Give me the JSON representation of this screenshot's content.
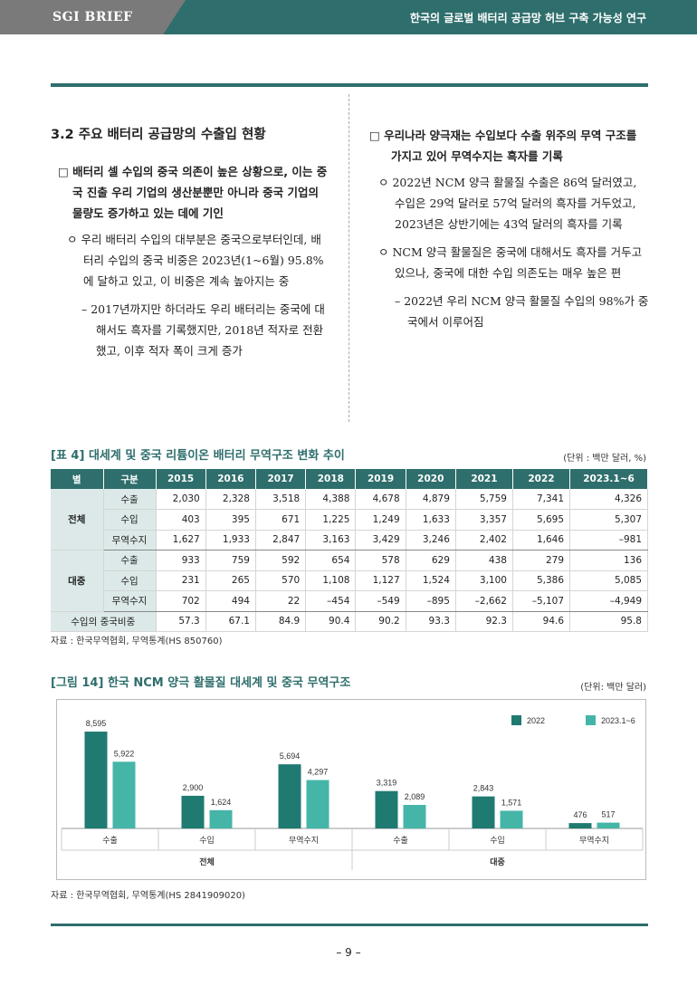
{
  "header": {
    "brand": "SGI BRIEF",
    "title": "한국의 글로벌 배터리 공급망 허브 구축 가능성 연구"
  },
  "left": {
    "section_title": "3.2 주요 배터리 공급망의 수출입 현황",
    "b1": "□ 배터리 셀 수입의 중국 의존이 높은 상황으로, 이는 중국 진출 우리 기업의 생산분뿐만 아니라 중국 기업의 물량도 증가하고 있는 데에 기인",
    "b2": "ㅇ 우리 배터리 수입의 대부분은 중국으로부터인데, 배터리 수입의 중국 비중은 2023년(1~6월) 95.8%에 달하고 있고, 이 비중은 계속 높아지는 중",
    "b3": "– 2017년까지만 하더라도 우리 배터리는 중국에 대해서도 흑자를 기록했지만, 2018년 적자로 전환했고, 이후 적자 폭이 크게 증가"
  },
  "right": {
    "b1": "□ 우리나라 양극재는 수입보다 수출 위주의 무역 구조를 가지고 있어 무역수지는 흑자를 기록",
    "b2": "ㅇ 2022년 NCM 양극 활물질 수출은 86억 달러였고, 수입은 29억 달러로 57억 달러의 흑자를 거두었고, 2023년은 상반기에는 43억 달러의 흑자를 기록",
    "b3": "ㅇ NCM 양극 활물질은 중국에 대해서도 흑자를 거두고 있으나, 중국에 대한 수입 의존도는 매우 높은 편",
    "b4": "– 2022년 우리 NCM 양극 활물질 수입의 98%가 중국에서 이루어짐"
  },
  "table": {
    "caption": "[표 4] 대세계 및 중국 리튬이온 배터리 무역구조 변화 추이",
    "unit": "(단위 : 백만 달러, %)",
    "headers": [
      "별",
      "구분",
      "2015",
      "2016",
      "2017",
      "2018",
      "2019",
      "2020",
      "2021",
      "2022",
      "2023.1~6"
    ],
    "groups": [
      {
        "name": "전체",
        "rows": [
          {
            "label": "수출",
            "values": [
              "2,030",
              "2,328",
              "3,518",
              "4,388",
              "4,678",
              "4,879",
              "5,759",
              "7,341",
              "4,326"
            ]
          },
          {
            "label": "수입",
            "values": [
              "403",
              "395",
              "671",
              "1,225",
              "1,249",
              "1,633",
              "3,357",
              "5,695",
              "5,307"
            ]
          },
          {
            "label": "무역수지",
            "values": [
              "1,627",
              "1,933",
              "2,847",
              "3,163",
              "3,429",
              "3,246",
              "2,402",
              "1,646",
              "–981"
            ]
          }
        ]
      },
      {
        "name": "대중",
        "rows": [
          {
            "label": "수출",
            "values": [
              "933",
              "759",
              "592",
              "654",
              "578",
              "629",
              "438",
              "279",
              "136"
            ]
          },
          {
            "label": "수입",
            "values": [
              "231",
              "265",
              "570",
              "1,108",
              "1,127",
              "1,524",
              "3,100",
              "5,386",
              "5,085"
            ]
          },
          {
            "label": "무역수지",
            "values": [
              "702",
              "494",
              "22",
              "–454",
              "–549",
              "–895",
              "–2,662",
              "–5,107",
              "–4,949"
            ]
          }
        ]
      }
    ],
    "footer": {
      "label": "수입의 중국비중",
      "values": [
        "57.3",
        "67.1",
        "84.9",
        "90.4",
        "90.2",
        "93.3",
        "92.3",
        "94.6",
        "95.8"
      ]
    },
    "source": "자료 : 한국무역협회, 무역통계(HS 850760)"
  },
  "figure": {
    "caption": "[그림 14] 한국 NCM 양극 활물질 대세계 및 중국 무역구조",
    "unit": "(단위: 백만 달러)",
    "source": "자료 : 한국무역협회, 무역통계(HS 2841909020)"
  },
  "chart_data": {
    "type": "bar",
    "categories": [
      "수출",
      "수입",
      "무역수지",
      "수출",
      "수입",
      "무역수지"
    ],
    "groups": [
      "전체",
      "대중"
    ],
    "series": [
      {
        "name": "2022",
        "color": "#1f7a72",
        "values": [
          8595,
          2900,
          5694,
          3319,
          2843,
          476
        ]
      },
      {
        "name": "2023.1~6",
        "color": "#45b5a8",
        "values": [
          5922,
          1624,
          4297,
          2089,
          1571,
          517
        ]
      }
    ],
    "value_labels": [
      [
        "8,595",
        "2,900",
        "5,694",
        "3,319",
        "2,843",
        "476"
      ],
      [
        "5,922",
        "1,624",
        "4,297",
        "2,089",
        "1,571",
        "517"
      ]
    ],
    "ylim": [
      0,
      9000
    ],
    "legend": "top-right",
    "grid": false
  },
  "page_number": "– 9 –"
}
